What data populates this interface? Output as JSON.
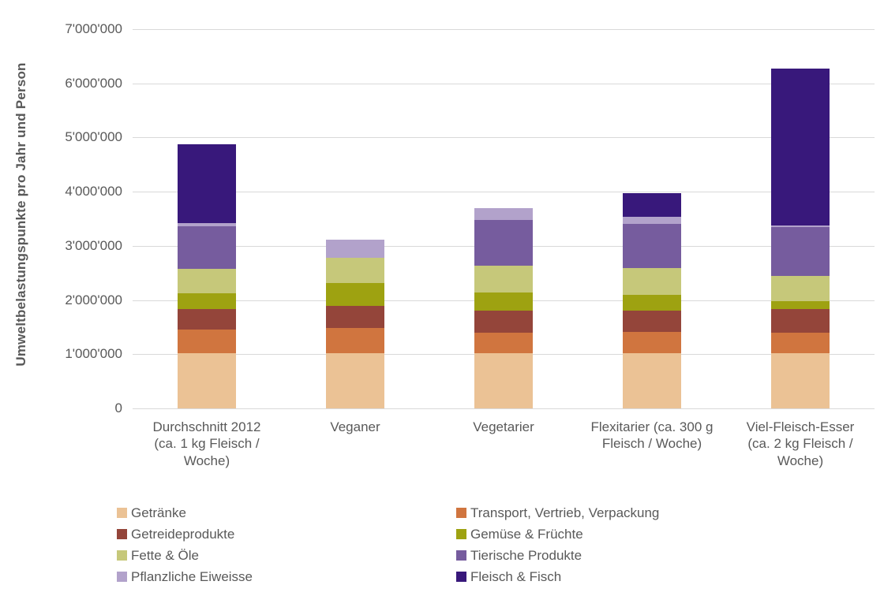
{
  "chart_data": {
    "type": "bar",
    "stacked": true,
    "title": "",
    "xlabel": "",
    "ylabel": "Umweltbelastungspunkte pro Jahr und Person",
    "ylim": [
      0,
      7000000
    ],
    "ytick_step": 1000000,
    "ytick_labels": [
      "0",
      "1'000'000",
      "2'000'000",
      "3'000'000",
      "4'000'000",
      "5'000'000",
      "6'000'000",
      "7'000'000"
    ],
    "grid": true,
    "gridline_color": "#d9d9d9",
    "axis_text_color": "#595959",
    "legend_position": "bottom",
    "legend_columns": 2,
    "categories": [
      "Durchschnitt 2012\n(ca. 1 kg Fleisch /\nWoche)",
      "Veganer",
      "Vegetarier",
      "Flexitarier (ca. 300 g\nFleisch / Woche)",
      "Viel-Fleisch-Esser\n(ca. 2 kg Fleisch /\nWoche)"
    ],
    "series": [
      {
        "name": "Getränke",
        "color": "#ebc295",
        "values": [
          1020000,
          1020000,
          1020000,
          1020000,
          1020000
        ]
      },
      {
        "name": "Transport, Vertrieb, Verpackung",
        "color": "#d0753f",
        "values": [
          440000,
          470000,
          380000,
          390000,
          380000
        ]
      },
      {
        "name": "Getreideprodukte",
        "color": "#94453a",
        "values": [
          380000,
          400000,
          410000,
          400000,
          430000
        ]
      },
      {
        "name": "Gemüse & Früchte",
        "color": "#9ea211",
        "values": [
          280000,
          430000,
          330000,
          290000,
          150000
        ]
      },
      {
        "name": "Fette & Öle",
        "color": "#c6c87a",
        "values": [
          460000,
          460000,
          490000,
          490000,
          460000
        ]
      },
      {
        "name": "Tierische Produkte",
        "color": "#765c9e",
        "values": [
          780000,
          0,
          850000,
          820000,
          910000
        ]
      },
      {
        "name": "Pflanzliche Eiweisse",
        "color": "#b2a2cb",
        "values": [
          60000,
          340000,
          220000,
          120000,
          30000
        ]
      },
      {
        "name": "Fleisch & Fisch",
        "color": "#38187b",
        "values": [
          1460000,
          0,
          0,
          450000,
          2890000
        ]
      }
    ],
    "totals": [
      4880000,
      3120000,
      3700000,
      3980000,
      6270000
    ]
  }
}
